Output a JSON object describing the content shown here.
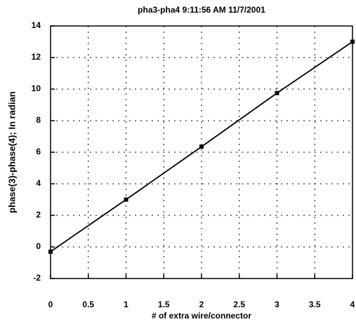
{
  "chart_data": {
    "type": "line",
    "title": "pha3-pha4 9:11:56 AM 11/7/2001",
    "x_label": "# of extra wire/connector",
    "y_label": "phase(3)-phase(4); In radian",
    "x": [
      0,
      1,
      2,
      3,
      4
    ],
    "series": [
      {
        "name": "phase(3)-phase(4)",
        "color": "#000000",
        "values": [
          -0.3,
          3.0,
          6.35,
          9.75,
          13.0
        ]
      }
    ],
    "xlim": [
      0,
      4
    ],
    "xticks": [
      0,
      0.5,
      1,
      1.5,
      2,
      2.5,
      3,
      3.5,
      4
    ],
    "ylim": [
      -2,
      14
    ],
    "yticks": [
      -2,
      0,
      2,
      4,
      6,
      8,
      10,
      12,
      14
    ],
    "grid": true
  }
}
